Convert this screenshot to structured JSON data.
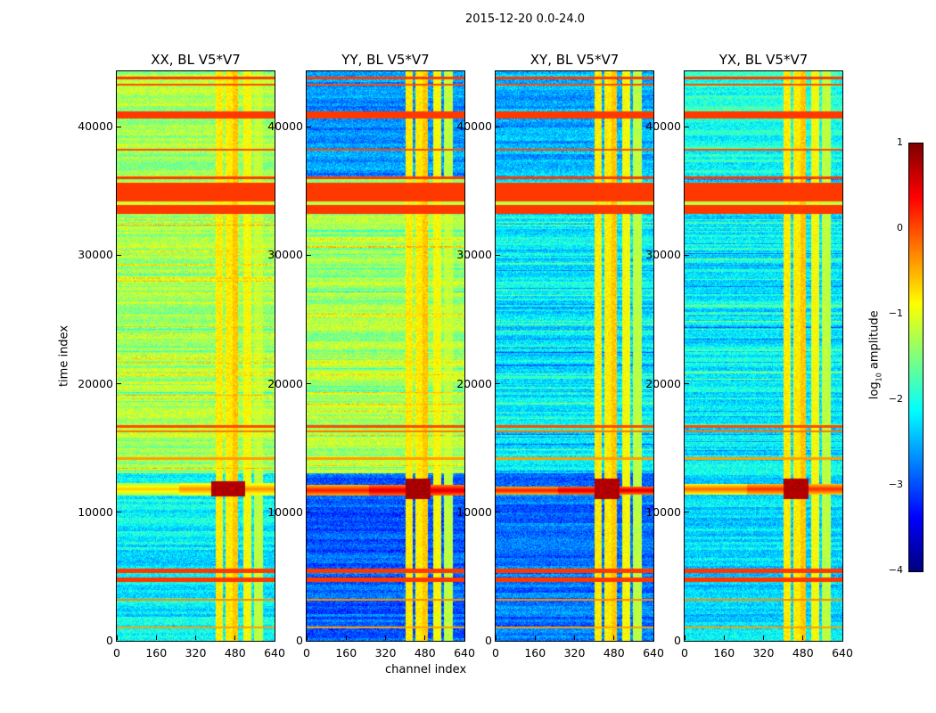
{
  "suptitle": "2015-12-20 0.0-24.0",
  "chart_data": {
    "type": "heatmap",
    "xlabel": "channel index",
    "ylabel": "time index",
    "xlim": [
      0,
      640
    ],
    "ylim": [
      0,
      44300
    ],
    "xticks": [
      "0",
      "160",
      "320",
      "480",
      "640"
    ],
    "yticks": [
      "0",
      "10000",
      "20000",
      "30000",
      "40000"
    ],
    "colormap": "jet",
    "colorbar": {
      "label": "log",
      "label_sub": "10",
      "label_rest": " amplitude",
      "range": [
        -4,
        1
      ],
      "ticks": [
        "1",
        "0",
        "−1",
        "−2",
        "−3",
        "−4"
      ]
    },
    "common_rows": [
      [
        43700,
        43900,
        0.1
      ],
      [
        43200,
        43300,
        0.0
      ],
      [
        40600,
        41200,
        0.1
      ],
      [
        38100,
        38300,
        0.0
      ],
      [
        35900,
        36100,
        0.1
      ],
      [
        33200,
        35600,
        0.1
      ],
      [
        33900,
        34200,
        -1.2
      ],
      [
        16600,
        16800,
        0.0
      ],
      [
        16200,
        16350,
        -0.2
      ],
      [
        14100,
        14300,
        -0.4
      ],
      [
        5300,
        5600,
        0.1
      ],
      [
        4600,
        4900,
        0.1
      ],
      [
        3100,
        3250,
        -0.3
      ],
      [
        1000,
        1100,
        -0.4
      ]
    ],
    "channel_bands": [
      [
        400,
        430,
        -0.8
      ],
      [
        440,
        470,
        -0.8
      ],
      [
        470,
        490,
        -0.6
      ],
      [
        510,
        545,
        -0.9
      ],
      [
        555,
        590,
        -1.2
      ]
    ],
    "panels": [
      {
        "title": "XX, BL V5*V7",
        "upper": -1.3,
        "mid": -1.3,
        "lower": -2.2,
        "hot_row": [
          11300,
          12300,
          -0.3
        ],
        "hot_spot": [
          11200,
          12400,
          380,
          520,
          0.9
        ]
      },
      {
        "title": "YY, BL V5*V7",
        "upper": -2.7,
        "mid": -1.3,
        "lower": -2.9,
        "hot_row": [
          11300,
          12100,
          0.6
        ],
        "hot_spot": [
          11000,
          12600,
          400,
          500,
          0.95
        ]
      },
      {
        "title": "XY, BL V5*V7",
        "upper": -2.5,
        "mid": -2.2,
        "lower": -2.8,
        "hot_row": [
          11400,
          12000,
          0.6
        ],
        "hot_spot": [
          11000,
          12600,
          400,
          500,
          0.9
        ]
      },
      {
        "title": "YX, BL V5*V7",
        "upper": -2.0,
        "mid": -2.2,
        "lower": -2.3,
        "hot_row": [
          11400,
          12200,
          0.2
        ],
        "hot_spot": [
          11000,
          12600,
          400,
          500,
          0.9
        ]
      }
    ]
  }
}
